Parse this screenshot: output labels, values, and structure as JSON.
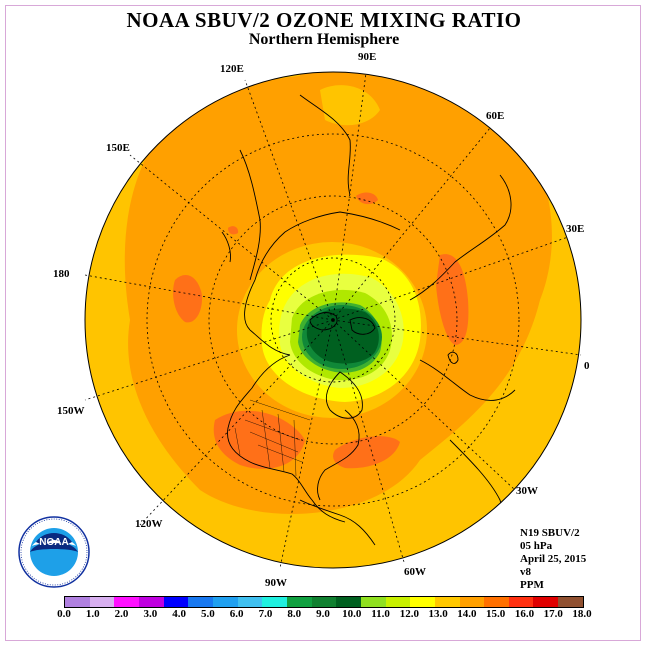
{
  "header": {
    "title": "NOAA SBUV/2 OZONE MIXING RATIO",
    "subtitle": "Northern Hemisphere"
  },
  "longitude_labels": {
    "lon_90e": "90E",
    "lon_60e": "60E",
    "lon_30e": "30E",
    "lon_0": "0",
    "lon_30w": "30W",
    "lon_60w": "60W",
    "lon_90w": "90W",
    "lon_120w": "120W",
    "lon_150w": "150W",
    "lon_180": "180",
    "lon_150e": "150E",
    "lon_120e": "120E"
  },
  "info": {
    "instrument": "N19 SBUV/2",
    "pressure": "05 hPa",
    "date": "April 25, 2015",
    "version": "v8",
    "units": "PPM"
  },
  "colorbar": {
    "colors": [
      "#b080e0",
      "#d8b0f0",
      "#ff10ff",
      "#c000e0",
      "#0000ff",
      "#1878f0",
      "#20a0f0",
      "#40c0f0",
      "#20f0e0",
      "#10a040",
      "#108030",
      "#006020",
      "#90e020",
      "#c8f000",
      "#ffff00",
      "#ffc800",
      "#ffa000",
      "#ff7000",
      "#ff3010",
      "#e00000",
      "#905030"
    ],
    "ticks": [
      "0.0",
      "1.0",
      "2.0",
      "3.0",
      "4.0",
      "5.0",
      "6.0",
      "7.0",
      "8.0",
      "9.0",
      "10.0",
      "11.0",
      "12.0",
      "13.0",
      "14.0",
      "15.0",
      "16.0",
      "17.0",
      "18.0"
    ]
  },
  "map_colors": {
    "outer": "#ffc400",
    "band": "#ffa000",
    "high": "#ff7018",
    "yellow": "#ffff00",
    "lightyellow": "#e8ff40",
    "lime": "#b0e800",
    "green": "#40b030",
    "darkgreen": "#006020",
    "mid_green": "#108838"
  },
  "logo": {
    "text": "NOAA"
  }
}
